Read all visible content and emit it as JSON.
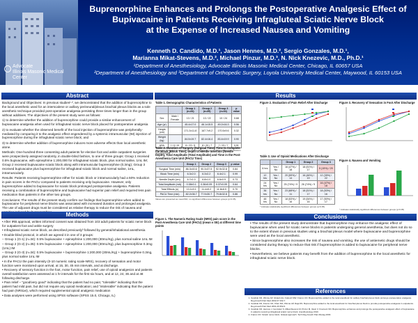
{
  "header": {
    "title_lines": [
      "Buprenorphine Enhances and Prolongs the Postoperative Analgesic Effect of",
      "Bupivacaine in Patients Receiving Infragluteal Sciatic Nerve Block",
      "at the Expense of Increased Nausea and Vomiting"
    ],
    "author_lines": [
      "Kenneth D. Candido, M.D.¹, Jason Hennes, M.D.², Sergio Gonzales, M.D.¹,",
      "Marianna Mikat-Stevens, M.D.², Michael Pinzur, M.D.³, N. Nick Knezevic, M.D., Ph.D.¹"
    ],
    "affil_lines": [
      "¹Department of Anesthesiology, Advocate Illinois Masonic Medical Center, Chicago, IL 60657 USA",
      "²Department of Anesthesiology and ³Department of Orthopedic Surgery, Loyola University Medical Center, Maywood, IL 60153 USA"
    ],
    "logo_line1": "Advocate",
    "logo_line2": "Illinois Masonic Medical Center"
  },
  "sections": {
    "abstract": "Abstract",
    "methods": "Methods",
    "results": "Results",
    "conclusions": "Conclusions",
    "references": "References"
  },
  "abstract": {
    "p1": "Background and Objectives: In previous studies¹·², we demonstrated that the addition of buprenorphine to the local anesthetic used for an interscalene or axillary perineural/plexus brachial plexus blocks as a sole anesthetic technique provided post-operative analgesia persisting three times longer than in the group without additives. The objectives of the present study were as follows:",
    "p2": "1) to determine whether the addition of buprenorphine could provide a similar enhancement of bupivacaine analgesia when used for infragluteal sciatic nerve block placed for postoperative analgesia",
    "p3": "2) to evaluate whether the observed benefit of the local injection of buprenorphine was peripherally-mediated by comparing it to the analgesic effect engendered by a systemic intramuscular (IM) injection of buprenorphine during the infragluteal sciatic nerve block; and",
    "p4": "3) to determine whether addition of buprenorphine induces more adverse effects than local anesthetic alone.",
    "p5": "Methods: One-hundred-three consenting adult patients for elective foot and ankle outpatient surgeries were prospectively assigned randomly, in double-blind fashion, to one of three groups: Group 1 received 0.5% bupivacaine, with epinephrine 1:200,000 for infragluteal sciatic block, plus normal saline, 1mL IM; Group 2 received bupivacaine sciatic block along with intramuscular buprenorphine (0.3mg); Group 3 received bupivacaine plus buprenorphine for infragluteal sciatic block and normal saline, 1mL, intramuscularly.",
    "p6": "Results: Patients receiving buprenorphine either for sciatic block or intramuscularly had a 50% reduction in pain scores in the PACU compared to patients receiving only bupivacaine. However, only buprenorphine added to bupivacaine for sciatic block prolonged postoperative analgesia. Patients receiving a combination of buprenorphine and bupivacaine had superior pain relief and required less pain medication than patients in the other two groups.",
    "p7": "Conclusions: The results of the present study confirm our findings that buprenorphine when added to bupivacaine for peripheral nerve blocks was associated with increased duration and prolonged analgesia. The use of adjuvant drugs must be considered as relative therapy to reduce the risk of nausea and vomiting induced by buprenorphine."
  },
  "methods": [
    "• After IRB approval, written informed consent was obtained from 103 adult patients for sciatic nerve block for outpatient foot and ankle surgery",
    "• Infragluteal sciatic nerve block, as described previously³ followed by general/inhalational anesthesia",
    "• Double-blind protocol, in which we agreed it in one of 3 groups:",
    "  – Group 1 (G-1) (n=34): 0.5% bupivacaine + epinephrine 1:200,000 (30mL/Kg), plus normal saline 1mL IM",
    "  – Group 2 (G-2) (n=35): 0.5% bupivacaine + epinephrine 1:200,000 (30mL/Kg), plus buprenorphine 0.3mg (1mL) IM",
    "  – Group 3 (G-3) (n=34): 0.5% bupivacaine + buprenorphine 1:200,000 (30mL/Kg) + buprenorphine 0.3mg, plus normal saline 1mL IM",
    "• In the PACU the pain intensity (0-10 numeric rating scale-NRS), recovery of sensation and motor function were monitored upon arrival, at 15, 30, 45 min intervals, and at discharge.",
    "• Recovery of sensory function in the foot, motor function, pain relief, use of opioid analgesics and patients overall satisfaction were assessed at 1 hr intervals for the first six hours, and at 12, 24, 36 and at 48 following discharge.",
    "• Pain relief – \"good/very good\" indicating that the patient had no pain; \"tolerable\" indicating that the patient had mild pain, but did not require any opioid medication; and \"intolerable\" indicating that the patient had pain (NRS≥4), which required supplemental opioid analgesic medication",
    "• Data analyses were performed using SPSS software (SPSS 15.0, Chicago, IL)"
  ],
  "table1": {
    "title": "Table 1. Demographic Characteristics of Patients",
    "headers": [
      "",
      "",
      "Group 1 (n=34)",
      "Group 2 (n=35)",
      "Group 3 (n=34)",
      "p value"
    ],
    "rows": [
      [
        "Sex",
        "Male / Female",
        "13 / 21",
        "13 / 22",
        "10 / 24",
        "0.68"
      ],
      [
        "Age (yr)",
        "",
        "45.4±17.0",
        "46.1±15.5",
        "49.2±16.3",
        "0.56"
      ],
      [
        "Height (cm)",
        "",
        "171.3±11.8",
        "167.7±9.2",
        "170.5±9.6",
        "0.32"
      ],
      [
        "Weight (kg)",
        "",
        "84.5±19.7",
        "82.4±16.4",
        "83.4±19.9",
        "0.90"
      ],
      [
        "ASA",
        "I / II / III",
        "6 / 23 / 5",
        "8 / 20 / 7",
        "7 / 20 / 7",
        "0.91"
      ]
    ],
    "note": "Values are presented as mean±SD or number of patients; no significant differences between groups (p>0.05)."
  },
  "table2": {
    "title": "Table 2. Duration of Surgery (Surgical Time), Time to Complete the Block (Block Time), Depth of Needle Insertion (Needle Depth), Total Amplitude (Total Amplitude) and Time in the Post-Anesthesia Care Unit (PACU Time)",
    "headers": [
      "",
      "Group 1",
      "Group 2",
      "Group 3",
      "p value"
    ],
    "rows": [
      [
        "Surgical Time (min)",
        "86.3±40.6",
        "90.3±37.5",
        "92.9±32.8",
        "0.84"
      ],
      [
        "Block Time (min)",
        "6.3±2.0",
        "6.3±2.2",
        "6.4±2.1",
        "0.99"
      ],
      [
        "Needle Depth (cm)",
        "6.7±1.0",
        "6.8±1.0",
        "6.6±0.9",
        "0.73"
      ],
      [
        "Total Amplitude (mA)",
        "0.38±0.1",
        "0.36±0.09",
        "0.37±0.09",
        "0.64"
      ],
      [
        "Total Effects (n)",
        "13.1±9.1",
        "11.4±9.2",
        "11.8±8.9",
        "0.70"
      ],
      [
        "PACU Time (min)",
        "82.2±36.7",
        "77.9±30.7",
        "79.8±32.8",
        "0.86"
      ]
    ],
    "note": "Values are presented as mean±SD; no significant differences between groups (p>0.05)."
  },
  "table3": {
    "title": "Table 3. Use of Opioid Medications After Discharge",
    "headers": [
      "",
      "",
      "Group 1",
      "Group 2",
      "Group 3"
    ],
    "rows": [
      [
        "6 hrs",
        "Yes / No",
        "16 (47%) / 18",
        "18 (51%) / 17",
        "5 (15%) / 29"
      ],
      [
        "12 hrs",
        "Yes / No",
        "20 (59%) / 14",
        "16 (46%) / 19",
        "12 (35%) / 22"
      ],
      [
        "24 hrs",
        "Yes / No",
        "25 (74%) / 9",
        "26 (74%) / 9",
        "16 (47%) / 18"
      ],
      [
        "36 hrs",
        "Yes / No",
        "23 (68%) / 11",
        "18 (51%) / 17",
        "18 (53%) / 16"
      ],
      [
        "48 hrs",
        "Yes / No",
        "18 (53%) / 16",
        "19 (54%) / 16",
        "17 (50%) / 17"
      ]
    ],
    "highlight": [
      [
        0,
        4
      ],
      [
        1,
        4
      ],
      [
        2,
        4
      ]
    ],
    "note": "* indicates statistically significant differences between groups (p<0.05)."
  },
  "fig1": {
    "title": "Figure 1. The Numeric Rating Scale (NRS) pain score in the Post-Anesthesia Care Unit (PACU) (mean ± SE) at different time points"
  },
  "fig2": {
    "title": "Figure 2. Evaluation of Pain Relief After Discharge"
  },
  "fig3": {
    "title": "Figure 3. Recovery of Sensation in Foot After Discharge"
  },
  "fig4": {
    "title": "Figure 4. Nausea and Vomiting",
    "note": "* indicates statistically significant differences between groups (p<0.05)"
  },
  "conclusions": [
    "• The results of the present study demonstrate that buprenorphine may enhance the analgesic effect of bupivacaine when used for sciatic nerve blocks in patients undergoing general anesthesia, but does not do so to the extent shown in previous studies using a brachial plexus model where bupivacaine and buprenorphine were used as the local anesthetic.",
    "• Since buprenorphine also increases the risk of nausea and vomiting, the use of antiemetic drugs should be considered during therapy to reduce that risk if buprenorphine is added to bupivacaine for peripheral nerve blocks.",
    "• Nevertheless, we believe patients may benefit from the addition of buprenorphine to the local anesthetic for infragluteal sciatic nerve block."
  ],
  "references": [
    "Candido KD, Winnie AP, Ghaleb AH, Fattouh MW, Franco CD. Buprenorphine added to the local anesthetic for axillary brachial plexus block prolongs postoperative analgesia. Reg Anesth Pain Med 2002;27:162-7.",
    "Candido KD, Franco CD, Khan MA, Winnie AP, Raja DS. Buprenorphine added to the local anesthetic for brachial plexus block to provide postoperative analgesia in outpatients. Reg Anesth Pain Med 2001;26:352-6.",
    "Candido KD, Hennes J, Gonzalez S, Mikat-Stevens M, Pinzur M, Vasic V, Knezevic NN. Buprenorphine enhances and prolongs the postoperative analgesic effect of bupivacaine in patients receiving infragluteal sciatic nerve block. Anesthesiology 2010.",
    "Franco CD. Sciatic nerve block. Gluteal approach. Tech Reg Anesth Pain Manag 2003."
  ],
  "colors": {
    "header_bg": "#002d8f",
    "section_bar": "#1f4fb0",
    "group1": "#2a4fd6",
    "group2": "#d62a2a",
    "group3": "#2aa84a"
  }
}
